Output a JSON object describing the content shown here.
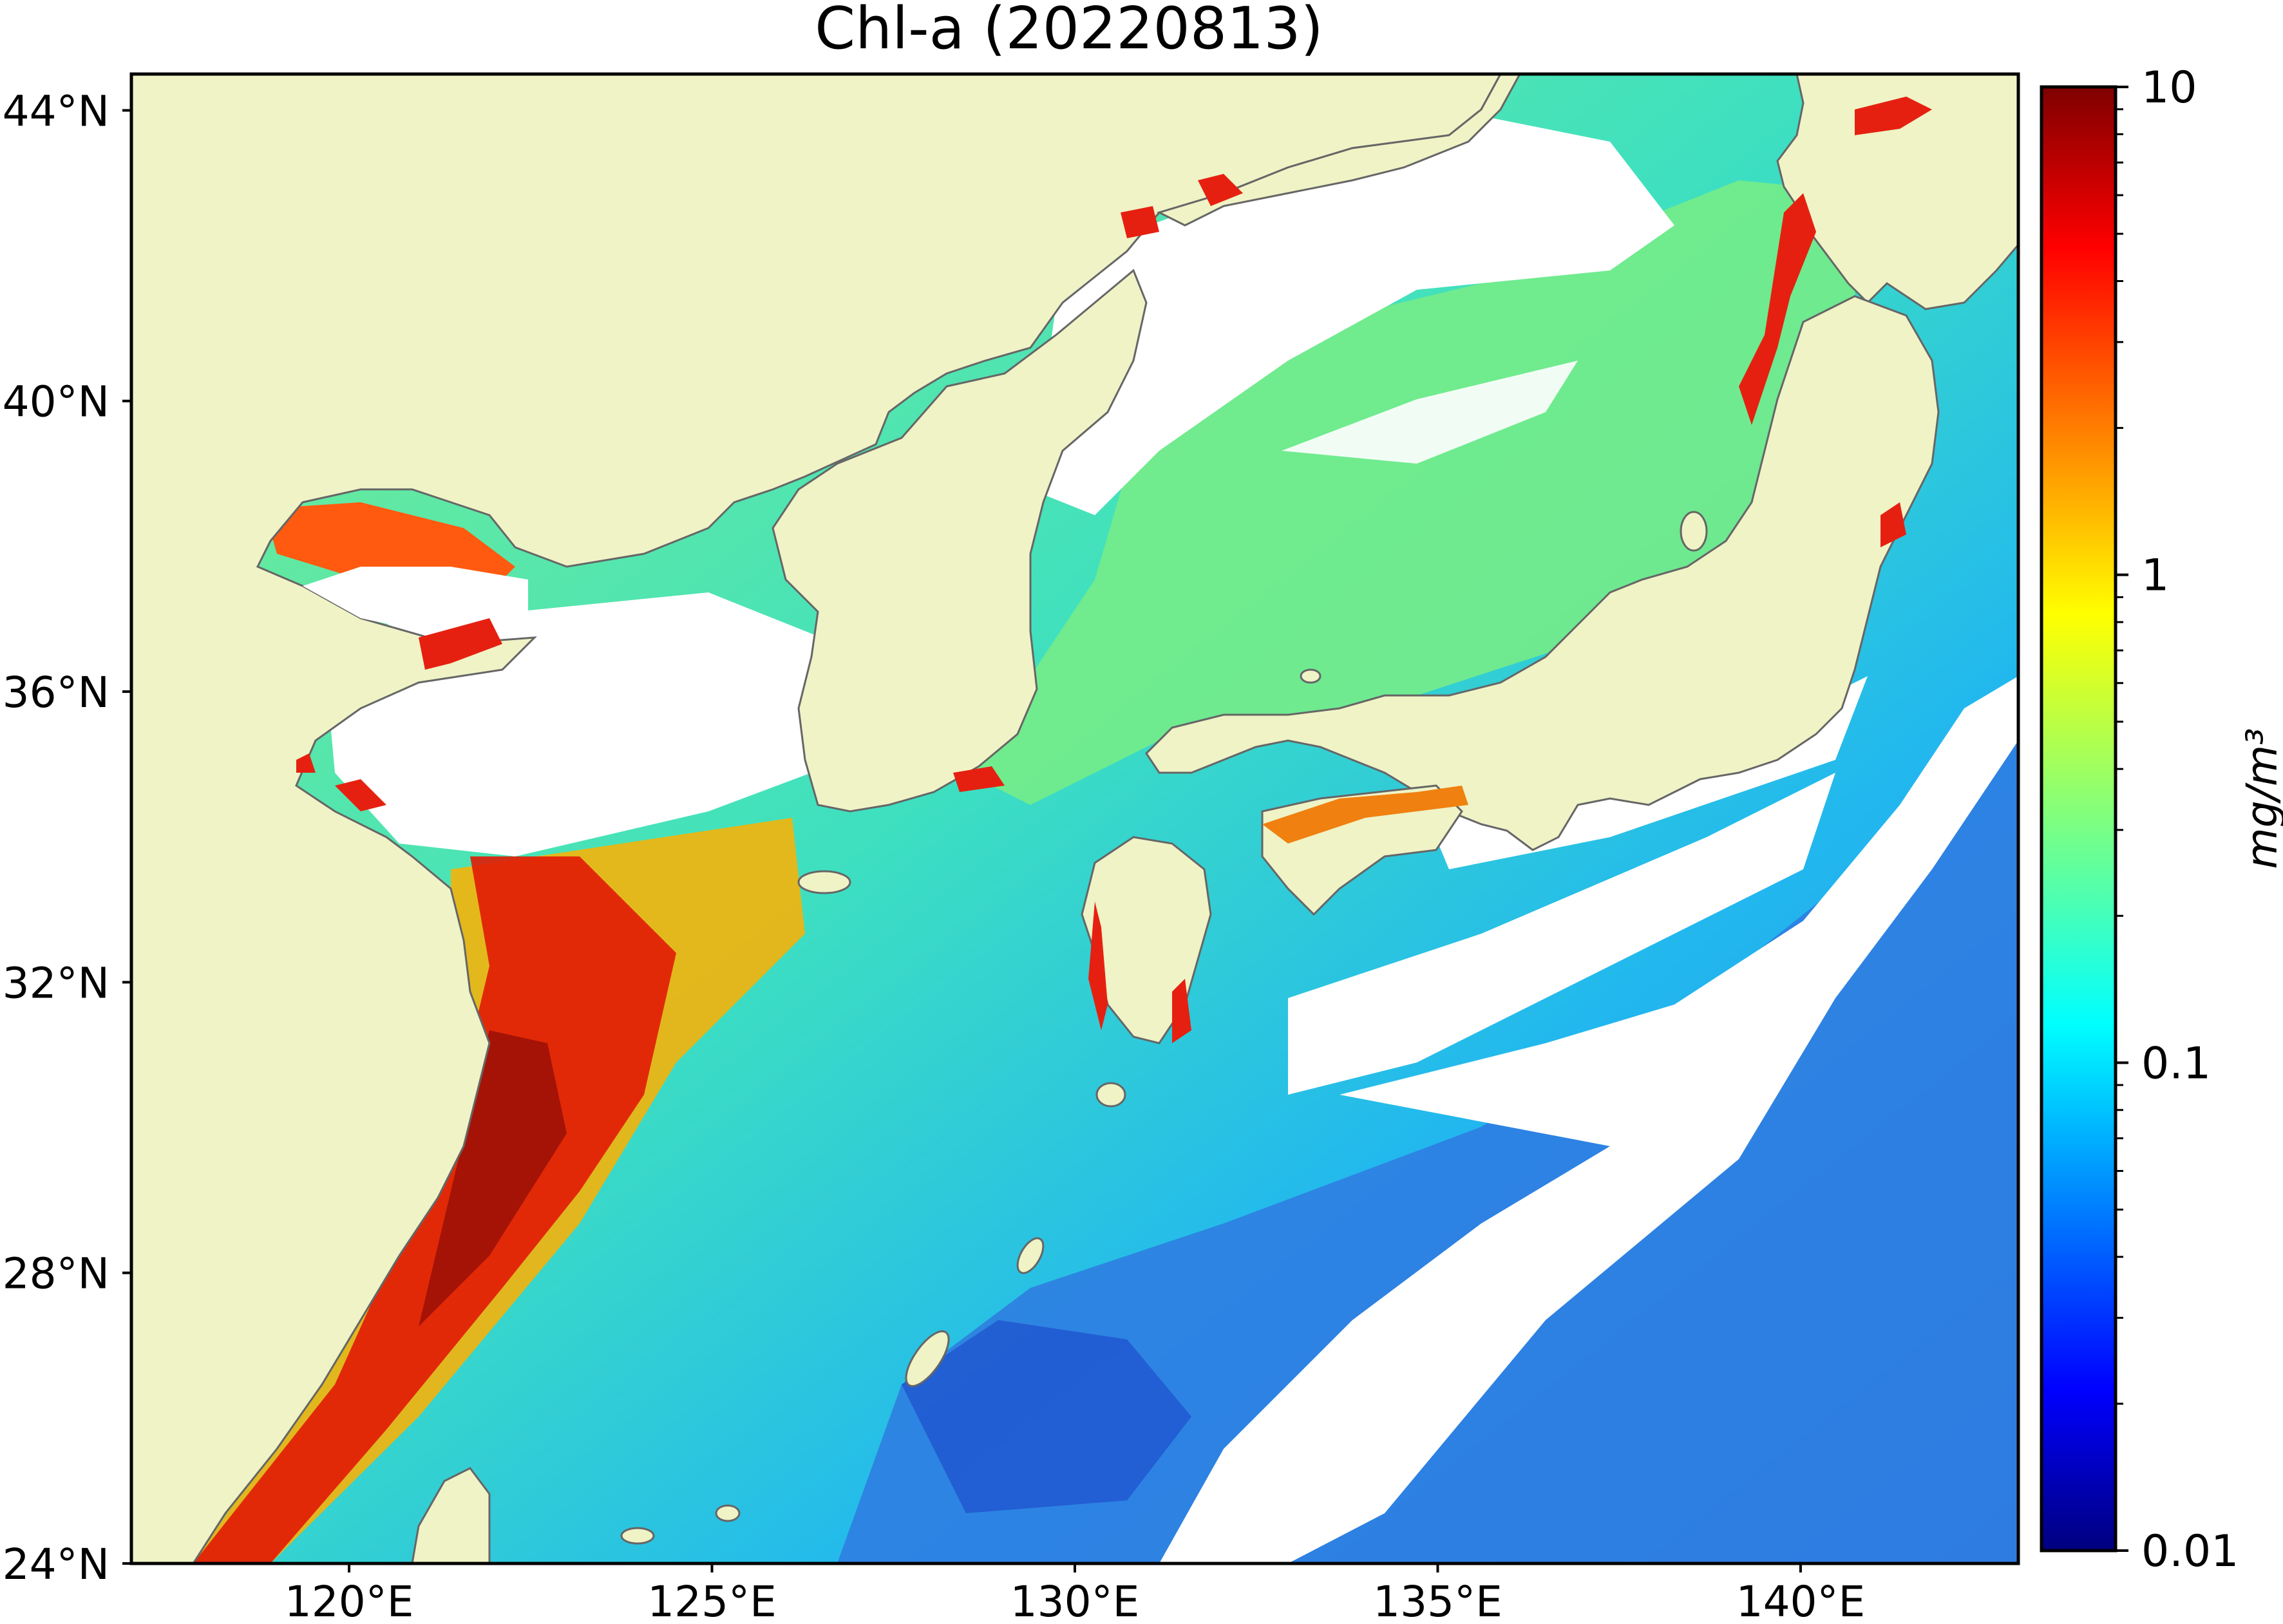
{
  "title": "Chl-a (20220813)",
  "map": {
    "lon_range": [
      117,
      143
    ],
    "lat_range": [
      24,
      44.5
    ],
    "land_color": "#eff3c6",
    "coastline_color": "#666666",
    "cloud_color": "#ffffff"
  },
  "lat_ticks": [
    {
      "value": 44,
      "label": "44°N"
    },
    {
      "value": 40,
      "label": "40°N"
    },
    {
      "value": 36,
      "label": "36°N"
    },
    {
      "value": 32,
      "label": "32°N"
    },
    {
      "value": 28,
      "label": "28°N"
    },
    {
      "value": 24,
      "label": "24°N"
    }
  ],
  "lon_ticks": [
    {
      "value": 120,
      "label": "120°E"
    },
    {
      "value": 125,
      "label": "125°E"
    },
    {
      "value": 130,
      "label": "130°E"
    },
    {
      "value": 135,
      "label": "135°E"
    },
    {
      "value": 140,
      "label": "140°E"
    }
  ],
  "colorbar": {
    "colormap": "jet",
    "scale": "log",
    "range": [
      0.01,
      10
    ],
    "ticks": [
      {
        "value": 10,
        "label": "10"
      },
      {
        "value": 1,
        "label": "1"
      },
      {
        "value": 0.1,
        "label": "0.1"
      },
      {
        "value": 0.01,
        "label": "0.01"
      }
    ],
    "unit_label": "mg/m³",
    "stops": [
      "#00007f",
      "#0000ff",
      "#007fff",
      "#00ffff",
      "#7fff7f",
      "#ffff00",
      "#ff7f00",
      "#ff0000",
      "#7f0000"
    ]
  }
}
